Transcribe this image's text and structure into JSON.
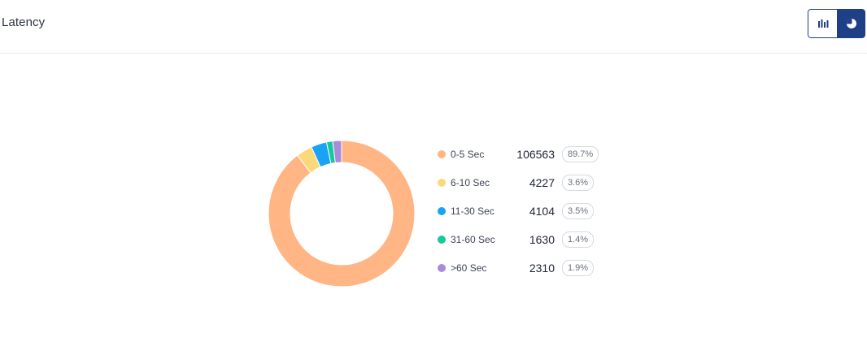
{
  "header": {
    "title": "Latency",
    "toggle": {
      "bar_icon": "bar-chart-icon",
      "pie_icon": "pie-chart-icon",
      "active": "pie"
    }
  },
  "chart_data": {
    "type": "pie",
    "donut": true,
    "title": "",
    "categories": [
      "0-5 Sec",
      "6-10 Sec",
      "11-30 Sec",
      "31-60 Sec",
      ">60 Sec"
    ],
    "values": [
      106563,
      4227,
      4104,
      1630,
      2310
    ],
    "percent_labels": [
      "89.7%",
      "3.6%",
      "3.5%",
      "1.4%",
      "1.9%"
    ],
    "value_labels": [
      "106563",
      "4227",
      "4104",
      "1630",
      "2310"
    ],
    "colors": [
      "#ffb584",
      "#fbd97a",
      "#1aa3f5",
      "#15c99a",
      "#a98bdc"
    ],
    "legend_position": "right"
  }
}
